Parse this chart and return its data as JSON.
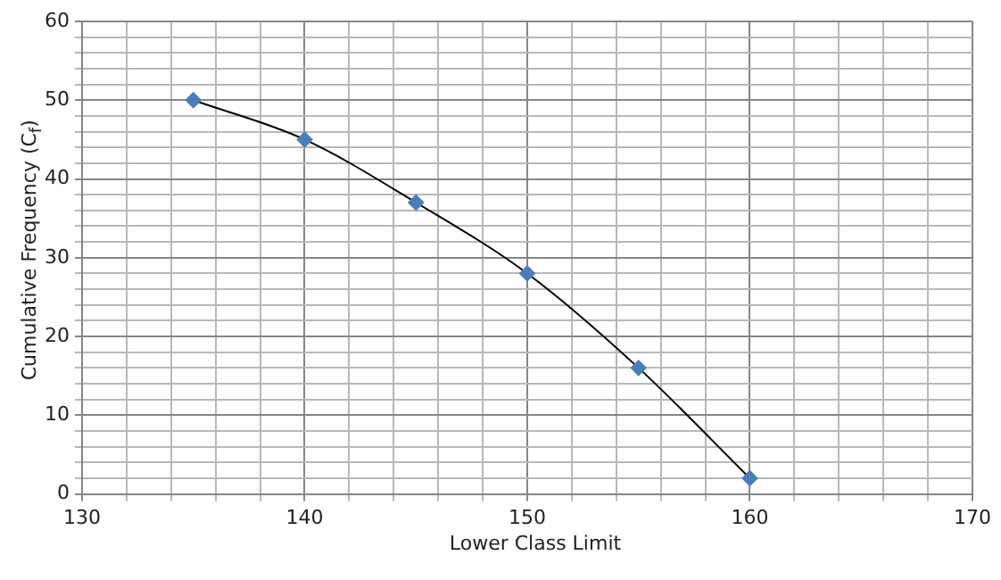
{
  "chart_data": {
    "type": "line",
    "xlabel": "Lower Class Limit",
    "ylabel": "Cumulative Frequency (C$_{f}$)",
    "x": [
      135,
      140,
      145,
      150,
      155,
      160
    ],
    "series": [
      {
        "color": "#4a7ebb",
        "values": [
          50,
          45,
          37,
          28,
          16,
          2
        ]
      }
    ],
    "xlim": [
      130,
      170
    ],
    "xticks": [
      130,
      {
        "value": 132,
        "label": null
      },
      {
        "value": 134,
        "label": null
      },
      {
        "value": 136,
        "label": null
      },
      {
        "value": 138,
        "label": null
      },
      140,
      {
        "value": 142,
        "label": null
      },
      {
        "value": 144,
        "label": null
      },
      {
        "value": 146,
        "label": null
      },
      {
        "value": 148,
        "label": null
      },
      150,
      {
        "value": 152,
        "label": null
      },
      {
        "value": 154,
        "label": null
      },
      {
        "value": 156,
        "label": null
      },
      {
        "value": 158,
        "label": null
      },
      160,
      {
        "value": 162,
        "label": null
      },
      {
        "value": 164,
        "label": null
      },
      {
        "value": 166,
        "label": null
      },
      {
        "value": 168,
        "label": null
      },
      170
    ],
    "ylim": [
      0,
      60
    ],
    "yticks": [
      0,
      {
        "value": 2,
        "label": null
      },
      {
        "value": 4,
        "label": null
      },
      {
        "value": 6,
        "label": null
      },
      {
        "value": 8,
        "label": null
      },
      10,
      {
        "value": 12,
        "label": null
      },
      {
        "value": 14,
        "label": null
      },
      {
        "value": 16,
        "label": null
      },
      {
        "value": 18,
        "label": null
      },
      20,
      {
        "value": 22,
        "label": null
      },
      {
        "value": 24,
        "label": null
      },
      {
        "value": 26,
        "label": null
      },
      {
        "value": 28,
        "label": null
      },
      30,
      {
        "value": 32,
        "label": null
      },
      {
        "value": 34,
        "label": null
      },
      {
        "value": 36,
        "label": null
      },
      {
        "value": 38,
        "label": null
      },
      40,
      {
        "value": 42,
        "label": null
      },
      {
        "value": 44,
        "label": null
      },
      {
        "value": 46,
        "label": null
      },
      {
        "value": 48,
        "label": null
      },
      50,
      {
        "value": 52,
        "label": null
      },
      {
        "value": 54,
        "label": null
      },
      {
        "value": 56,
        "label": null
      },
      {
        "value": 58,
        "label": null
      },
      60
    ],
    "grid": true,
    "legend": false,
    "marker": "diamond",
    "line_style": "solid"
  }
}
